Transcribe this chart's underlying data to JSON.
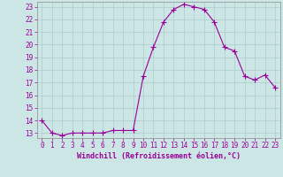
{
  "x": [
    0,
    1,
    2,
    3,
    4,
    5,
    6,
    7,
    8,
    9,
    10,
    11,
    12,
    13,
    14,
    15,
    16,
    17,
    18,
    19,
    20,
    21,
    22,
    23
  ],
  "y": [
    14,
    13,
    12.8,
    13,
    13,
    13,
    13,
    13.2,
    13.2,
    13.2,
    17.5,
    19.8,
    21.8,
    22.8,
    23.2,
    23,
    22.8,
    21.8,
    19.8,
    19.5,
    17.5,
    17.2,
    17.6,
    16.6
  ],
  "line_color": "#990099",
  "marker": "+",
  "markersize": 4,
  "linewidth": 0.8,
  "bg_color": "#cce5e5",
  "grid_color": "#aacccc",
  "xlabel": "Windchill (Refroidissement éolien,°C)",
  "xlabel_color": "#990099",
  "tick_color": "#990099",
  "spine_color": "#888888",
  "ylim_min": 12.6,
  "ylim_max": 23.4,
  "yticks": [
    13,
    14,
    15,
    16,
    17,
    18,
    19,
    20,
    21,
    22,
    23
  ],
  "xticks": [
    0,
    1,
    2,
    3,
    4,
    5,
    6,
    7,
    8,
    9,
    10,
    11,
    12,
    13,
    14,
    15,
    16,
    17,
    18,
    19,
    20,
    21,
    22,
    23
  ],
  "tick_fontsize": 5.5,
  "xlabel_fontsize": 6.0
}
